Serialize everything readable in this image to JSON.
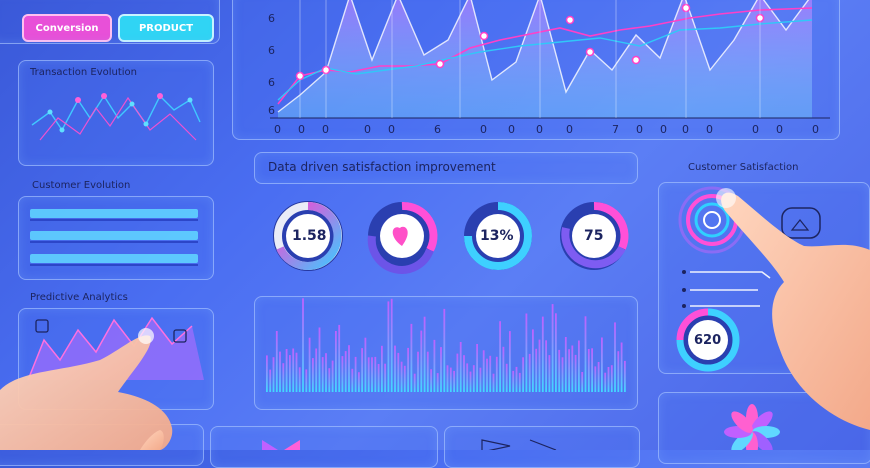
{
  "top_buttons": {
    "left_label": "Conversion",
    "right_label": "PRODUCT"
  },
  "left_panels": {
    "trends_title": "Transaction Evolution",
    "customer_title": "Customer Evolution",
    "predictive_title": "Predictive Analytics"
  },
  "main_chart": {
    "x_ticks": [
      "0",
      "0",
      "0",
      "0",
      "0",
      "6",
      "0",
      "0",
      "0",
      "0",
      "7",
      "0",
      "0",
      "0",
      "0",
      "0",
      "0",
      "0"
    ],
    "y_ticks": [
      "6",
      "6",
      "6",
      "6"
    ]
  },
  "metrics": {
    "title": "Data driven satisfaction improvement",
    "ring1_value": "1.58",
    "ring3_value": "13%",
    "ring4_value": "75"
  },
  "right_panel": {
    "title": "Customer Satisfaction",
    "ring_value": "620"
  },
  "colors": {
    "accent_pink": "#ff3cc8",
    "accent_cyan": "#30d8f8",
    "accent_purple": "#a060f8",
    "panel_border": "#b8d0ff"
  }
}
